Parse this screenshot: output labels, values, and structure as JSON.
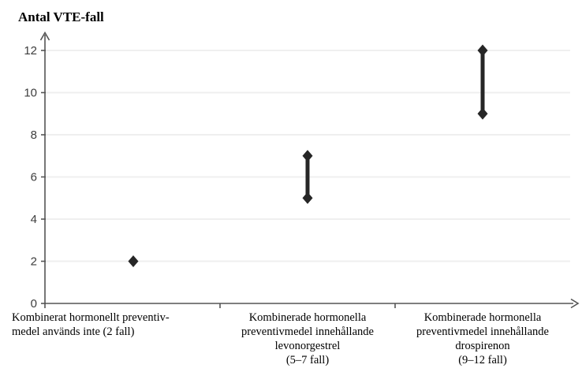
{
  "chart_data": {
    "type": "scatter",
    "title": "Antal VTE-fall",
    "ylabel": "Antal VTE-fall",
    "xlabel": "",
    "ylim": [
      0,
      12
    ],
    "yticks": [
      0,
      2,
      4,
      6,
      8,
      10,
      12
    ],
    "grid": "horizontal-light",
    "legend": "none",
    "categories": [
      {
        "label_lines": [
          "Kombinerat hormonellt preventiv-",
          "medel används inte (2 fall)"
        ],
        "align": "left",
        "low": 2,
        "high": 2
      },
      {
        "label_lines": [
          "Kombinerade hormonella",
          "preventivmedel innehållande",
          "levonorgestrel",
          "(5–7 fall)"
        ],
        "align": "center",
        "low": 5,
        "high": 7
      },
      {
        "label_lines": [
          "Kombinerade hormonella",
          "preventivmedel innehållande",
          "drospirenon",
          "(9–12 fall)"
        ],
        "align": "center",
        "low": 9,
        "high": 12
      }
    ],
    "colors": {
      "marker": "#262626",
      "grid": "#efefef",
      "axis": "#555555",
      "text": "#000000",
      "tick_text": "#3d3d3d"
    }
  }
}
